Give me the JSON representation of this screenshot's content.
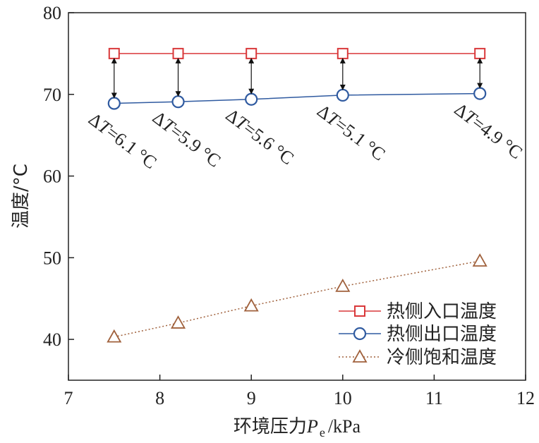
{
  "chart_data": {
    "type": "line",
    "title": "",
    "xlabel_prefix": "环境压力",
    "xlabel_var": "P",
    "xlabel_sub": "e",
    "xlabel_unit": "/kPa",
    "ylabel": "温度/°C",
    "xlim": [
      7,
      12
    ],
    "ylim": [
      35,
      80
    ],
    "xticks": [
      "7",
      "8",
      "9",
      "10",
      "11",
      "12"
    ],
    "yticks": [
      "40",
      "50",
      "60",
      "70",
      "80"
    ],
    "grid": false,
    "legend_position": "bottom-right",
    "x": [
      7.5,
      8.2,
      9.0,
      10.0,
      11.5
    ],
    "series": [
      {
        "name": "热侧入口温度",
        "values": [
          75.0,
          75.0,
          75.0,
          75.0,
          75.0
        ],
        "color": "#d9383a",
        "marker": "square",
        "line": "solid"
      },
      {
        "name": "热侧出口温度",
        "values": [
          68.9,
          69.1,
          69.4,
          69.9,
          70.1
        ],
        "color": "#2f5aa0",
        "marker": "circle",
        "line": "solid"
      },
      {
        "name": "冷侧饱和温度",
        "values": [
          40.3,
          42.0,
          44.1,
          46.5,
          49.6
        ],
        "color": "#a0613c",
        "marker": "triangle",
        "line": "dotted"
      }
    ],
    "annotations": [
      {
        "x": 7.5,
        "delta_symbol": "Δ",
        "var": "T",
        "text": "=6.1 °C"
      },
      {
        "x": 8.2,
        "delta_symbol": "Δ",
        "var": "T",
        "text": "=5.9 °C"
      },
      {
        "x": 9.0,
        "delta_symbol": "Δ",
        "var": "T",
        "text": "=5.6 °C"
      },
      {
        "x": 10.0,
        "delta_symbol": "Δ",
        "var": "T",
        "text": "=5.1 °C"
      },
      {
        "x": 11.5,
        "delta_symbol": "Δ",
        "var": "T",
        "text": "=4.9 °C"
      }
    ]
  }
}
